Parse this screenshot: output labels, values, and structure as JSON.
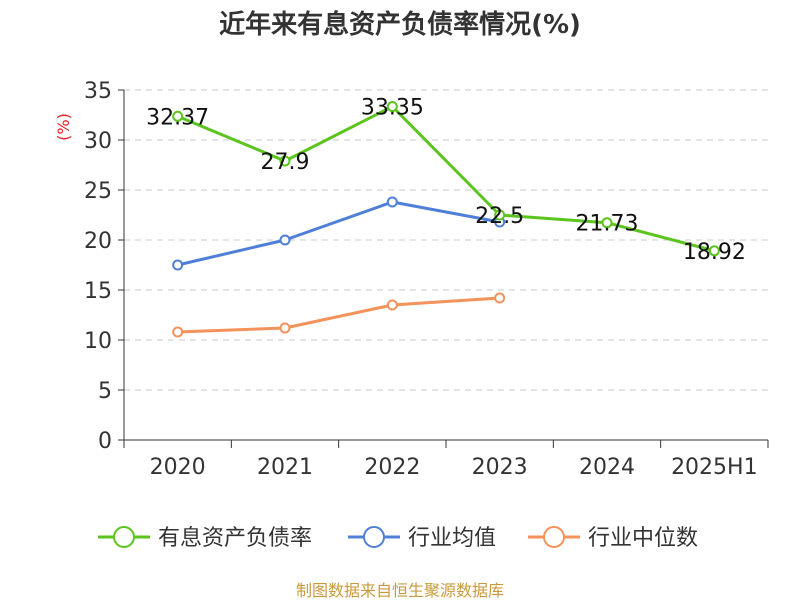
{
  "chart_data": {
    "type": "line",
    "title": "近年来有息资产负债率情况(%)",
    "ylabel": "(%)",
    "categories": [
      "2020",
      "2021",
      "2022",
      "2023",
      "2024",
      "2025H1"
    ],
    "ylim": [
      0,
      35
    ],
    "yticks": [
      0,
      5,
      10,
      15,
      20,
      25,
      30,
      35
    ],
    "grid": "horizontal dashed",
    "legend_position": "bottom",
    "series": [
      {
        "name": "有息资产负债率",
        "color": "#5cc41f",
        "values": [
          32.37,
          27.9,
          33.35,
          22.5,
          21.73,
          18.92
        ],
        "labels": [
          "32.37",
          "27.9",
          "33.35",
          "22.5",
          "21.73",
          "18.92"
        ]
      },
      {
        "name": "行业均值",
        "color": "#4f7fd6",
        "values": [
          17.5,
          20.0,
          23.8,
          21.8,
          null,
          null
        ]
      },
      {
        "name": "行业中位数",
        "color": "#f4925c",
        "values": [
          10.8,
          11.2,
          13.5,
          14.2,
          null,
          null
        ]
      }
    ]
  },
  "source_text": "制图数据来自恒生聚源数据库"
}
